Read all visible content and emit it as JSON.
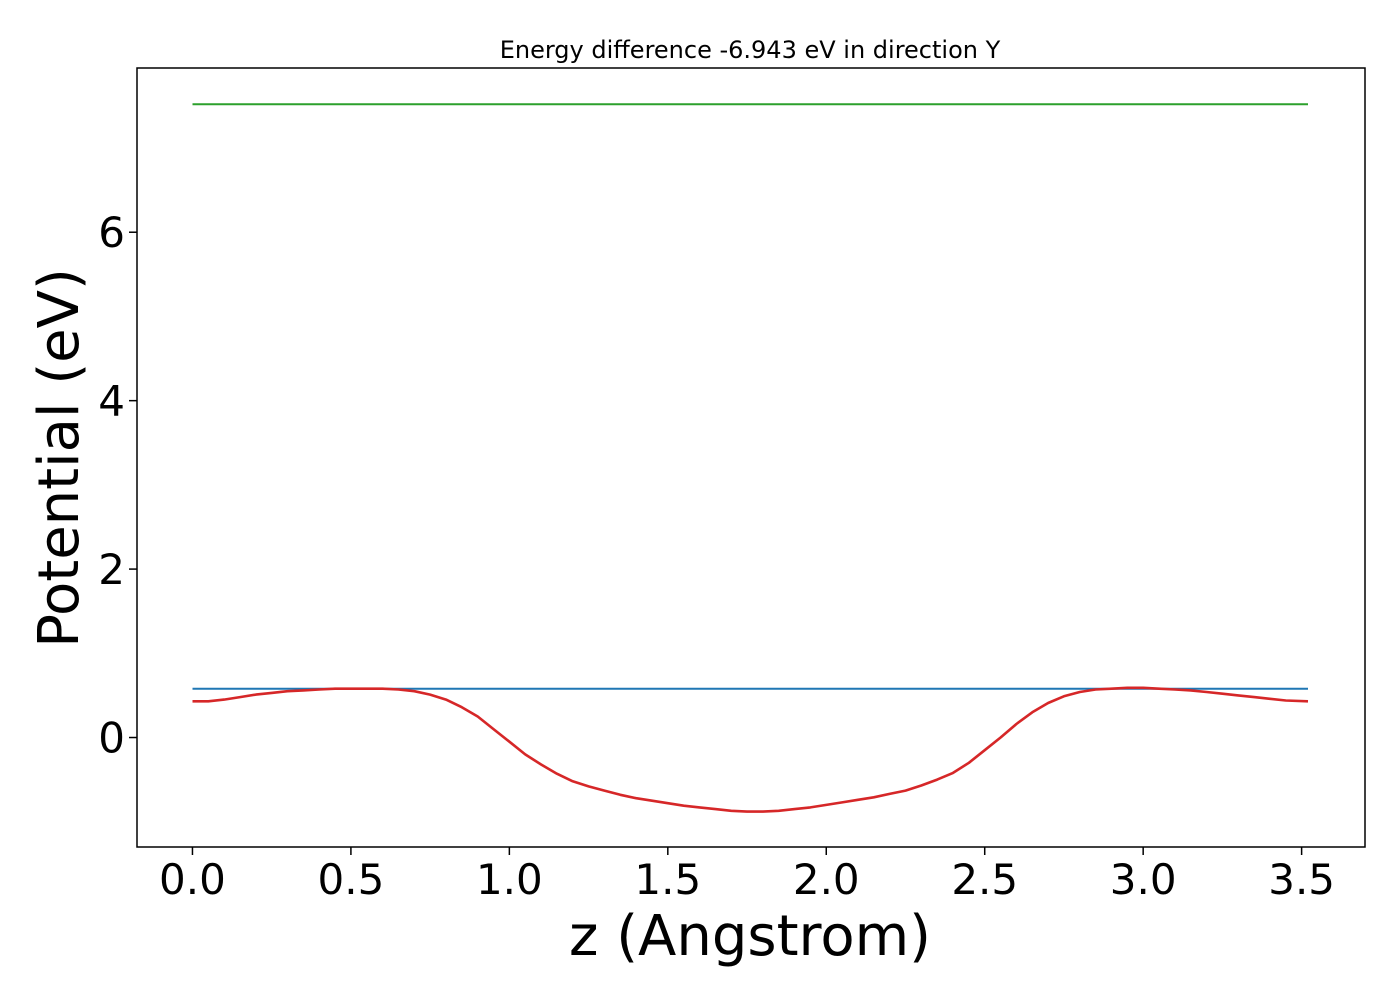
{
  "chart_data": {
    "type": "line",
    "title": "Energy difference -6.943 eV in direction Y",
    "xlabel": "z (Angstrom)",
    "ylabel": "Potential (eV)",
    "xlim": [
      -0.175,
      3.7
    ],
    "ylim": [
      -1.3,
      7.95
    ],
    "xticks": [
      0.0,
      0.5,
      1.0,
      1.5,
      2.0,
      2.5,
      3.0,
      3.5
    ],
    "xtick_labels": [
      "0.0",
      "0.5",
      "1.0",
      "1.5",
      "2.0",
      "2.5",
      "3.0",
      "3.5"
    ],
    "yticks": [
      0,
      2,
      4,
      6
    ],
    "ytick_labels": [
      "0",
      "2",
      "4",
      "6"
    ],
    "grid": false,
    "legend": "none",
    "series": [
      {
        "color": "#2ca02c",
        "x": [
          0.0,
          3.52
        ],
        "y": [
          7.52,
          7.52
        ]
      },
      {
        "color": "#1f77b4",
        "x": [
          0.0,
          3.52
        ],
        "y": [
          0.58,
          0.58
        ]
      },
      {
        "color": "#d62728",
        "x": [
          0.0,
          0.05,
          0.1,
          0.15,
          0.2,
          0.25,
          0.3,
          0.35,
          0.4,
          0.45,
          0.5,
          0.55,
          0.6,
          0.65,
          0.7,
          0.75,
          0.8,
          0.85,
          0.9,
          0.95,
          1.0,
          1.05,
          1.1,
          1.15,
          1.2,
          1.25,
          1.3,
          1.35,
          1.4,
          1.45,
          1.5,
          1.55,
          1.6,
          1.65,
          1.7,
          1.75,
          1.8,
          1.85,
          1.9,
          1.95,
          2.0,
          2.05,
          2.1,
          2.15,
          2.2,
          2.25,
          2.3,
          2.35,
          2.4,
          2.45,
          2.5,
          2.55,
          2.6,
          2.65,
          2.7,
          2.75,
          2.8,
          2.85,
          2.9,
          2.95,
          3.0,
          3.05,
          3.1,
          3.15,
          3.2,
          3.25,
          3.3,
          3.35,
          3.4,
          3.45,
          3.52
        ],
        "y": [
          0.43,
          0.43,
          0.45,
          0.48,
          0.51,
          0.53,
          0.55,
          0.56,
          0.57,
          0.58,
          0.58,
          0.58,
          0.58,
          0.57,
          0.55,
          0.51,
          0.45,
          0.36,
          0.25,
          0.1,
          -0.05,
          -0.2,
          -0.32,
          -0.43,
          -0.52,
          -0.58,
          -0.63,
          -0.68,
          -0.72,
          -0.75,
          -0.78,
          -0.81,
          -0.83,
          -0.85,
          -0.87,
          -0.88,
          -0.88,
          -0.87,
          -0.85,
          -0.83,
          -0.8,
          -0.77,
          -0.74,
          -0.71,
          -0.67,
          -0.63,
          -0.57,
          -0.5,
          -0.42,
          -0.3,
          -0.15,
          0.0,
          0.16,
          0.3,
          0.41,
          0.49,
          0.54,
          0.57,
          0.58,
          0.59,
          0.59,
          0.58,
          0.57,
          0.56,
          0.54,
          0.52,
          0.5,
          0.48,
          0.46,
          0.44,
          0.43
        ]
      }
    ]
  }
}
